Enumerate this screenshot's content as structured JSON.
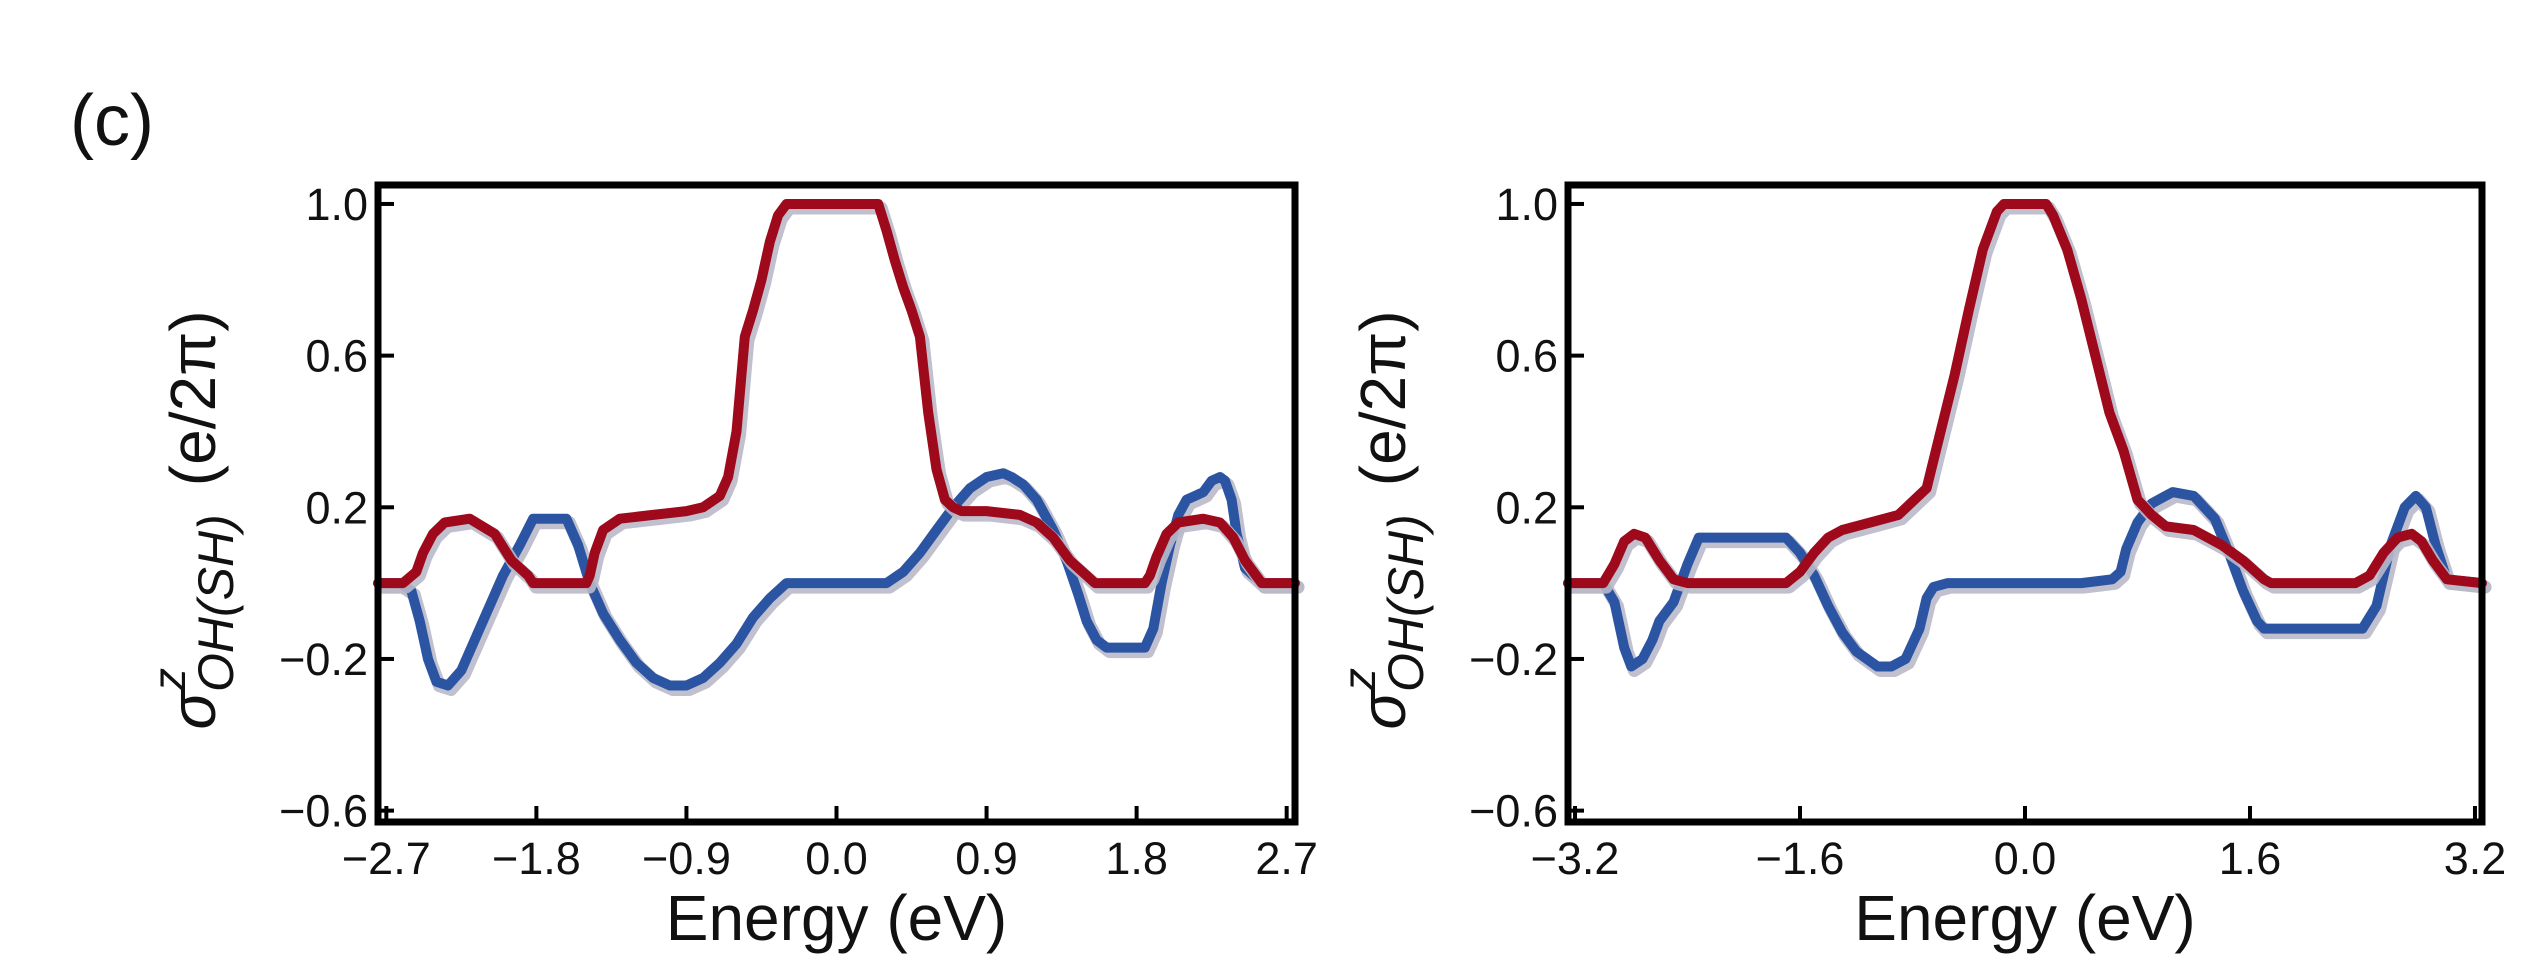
{
  "figure": {
    "panel_label": "(c)"
  },
  "colors": {
    "blue": "#2b55a3",
    "red": "#9e0a1c",
    "shadow": "#b9b9c9",
    "axis": "#000000"
  },
  "chart_data": [
    {
      "type": "line",
      "title": "",
      "xlabel": "Energy (eV)",
      "ylabel": {
        "sigma": "σ",
        "superscript": "z",
        "subscript": "OH(SH)",
        "units": "(e/2π)"
      },
      "xlim": [
        -2.75,
        2.75
      ],
      "ylim": [
        -0.63,
        1.05
      ],
      "xticks": [
        -2.7,
        -1.8,
        -0.9,
        0.0,
        0.9,
        1.8,
        2.7
      ],
      "xtick_labels": [
        "−2.7",
        "−1.8",
        "−0.9",
        "0.0",
        "0.9",
        "1.8",
        "2.7"
      ],
      "yticks": [
        1.0,
        0.6,
        0.2,
        -0.2,
        -0.6
      ],
      "ytick_labels": [
        "1.0",
        "0.6",
        "0.2",
        "−0.2",
        "−0.6"
      ],
      "series": [
        {
          "name": "blue",
          "color": "#2b55a3",
          "x": [
            -2.75,
            -2.62,
            -2.55,
            -2.5,
            -2.45,
            -2.4,
            -2.33,
            -2.25,
            -2.15,
            -2.0,
            -1.9,
            -1.82,
            -1.78,
            -1.62,
            -1.55,
            -1.48,
            -1.4,
            -1.3,
            -1.2,
            -1.1,
            -1.0,
            -0.9,
            -0.8,
            -0.7,
            -0.6,
            -0.5,
            -0.4,
            -0.3,
            -0.25,
            0.0,
            0.3,
            0.4,
            0.5,
            0.6,
            0.7,
            0.8,
            0.9,
            1.0,
            1.05,
            1.12,
            1.2,
            1.3,
            1.38,
            1.45,
            1.5,
            1.56,
            1.62,
            1.65,
            1.85,
            1.9,
            1.95,
            2.0,
            2.05,
            2.1,
            2.15,
            2.2,
            2.25,
            2.3,
            2.33,
            2.37,
            2.4,
            2.45,
            2.55,
            2.75
          ],
          "y": [
            0.0,
            0.0,
            -0.02,
            -0.1,
            -0.2,
            -0.26,
            -0.27,
            -0.23,
            -0.13,
            0.02,
            0.1,
            0.17,
            0.17,
            0.17,
            0.1,
            0.0,
            -0.08,
            -0.15,
            -0.21,
            -0.25,
            -0.27,
            -0.27,
            -0.25,
            -0.21,
            -0.16,
            -0.09,
            -0.04,
            0.0,
            0.0,
            0.0,
            0.0,
            0.03,
            0.08,
            0.14,
            0.2,
            0.25,
            0.28,
            0.29,
            0.28,
            0.26,
            0.22,
            0.14,
            0.06,
            -0.03,
            -0.1,
            -0.15,
            -0.17,
            -0.17,
            -0.17,
            -0.12,
            0.0,
            0.1,
            0.18,
            0.22,
            0.23,
            0.24,
            0.27,
            0.28,
            0.27,
            0.22,
            0.13,
            0.04,
            0.0,
            0.0
          ]
        },
        {
          "name": "red",
          "color": "#9e0a1c",
          "x": [
            -2.75,
            -2.6,
            -2.52,
            -2.48,
            -2.42,
            -2.35,
            -2.2,
            -2.05,
            -1.95,
            -1.85,
            -1.82,
            -1.8,
            -1.5,
            -1.48,
            -1.45,
            -1.4,
            -1.3,
            -1.1,
            -0.9,
            -0.8,
            -0.7,
            -0.65,
            -0.6,
            -0.55,
            -0.5,
            -0.45,
            -0.4,
            -0.35,
            -0.3,
            -0.25,
            -0.2,
            0.2,
            0.25,
            0.3,
            0.35,
            0.4,
            0.45,
            0.5,
            0.55,
            0.6,
            0.65,
            0.7,
            0.75,
            0.8,
            0.85,
            0.9,
            1.1,
            1.2,
            1.3,
            1.4,
            1.5,
            1.55,
            1.6,
            1.85,
            1.88,
            1.92,
            1.98,
            2.05,
            2.2,
            2.3,
            2.38,
            2.45,
            2.55,
            2.75
          ],
          "y": [
            0.0,
            0.0,
            0.03,
            0.08,
            0.13,
            0.16,
            0.17,
            0.13,
            0.06,
            0.02,
            0.0,
            0.0,
            0.0,
            0.02,
            0.08,
            0.14,
            0.17,
            0.18,
            0.19,
            0.2,
            0.23,
            0.28,
            0.4,
            0.65,
            0.72,
            0.8,
            0.9,
            0.97,
            1.0,
            1.0,
            1.0,
            1.0,
            1.0,
            0.93,
            0.85,
            0.78,
            0.72,
            0.65,
            0.45,
            0.3,
            0.22,
            0.2,
            0.19,
            0.19,
            0.19,
            0.19,
            0.18,
            0.16,
            0.12,
            0.06,
            0.02,
            0.0,
            0.0,
            0.0,
            0.02,
            0.07,
            0.13,
            0.16,
            0.17,
            0.16,
            0.12,
            0.06,
            0.0,
            0.0
          ]
        }
      ]
    },
    {
      "type": "line",
      "title": "",
      "xlabel": "Energy (eV)",
      "ylabel": {
        "sigma": "σ",
        "superscript": "z",
        "subscript": "OH(SH)",
        "units": "(e/2π)"
      },
      "xlim": [
        -3.25,
        3.25
      ],
      "ylim": [
        -0.63,
        1.05
      ],
      "xticks": [
        -3.2,
        -1.6,
        0.0,
        1.6,
        3.2
      ],
      "xtick_labels": [
        "−3.2",
        "−1.6",
        "0.0",
        "1.6",
        "3.2"
      ],
      "yticks": [
        1.0,
        0.6,
        0.2,
        -0.2,
        -0.6
      ],
      "ytick_labels": [
        "1.0",
        "0.6",
        "0.2",
        "−0.2",
        "−0.6"
      ],
      "series": [
        {
          "name": "blue",
          "color": "#2b55a3",
          "x": [
            -3.25,
            -3.0,
            -2.92,
            -2.85,
            -2.8,
            -2.72,
            -2.65,
            -2.6,
            -2.5,
            -2.4,
            -2.32,
            -1.7,
            -1.6,
            -1.5,
            -1.4,
            -1.3,
            -1.2,
            -1.05,
            -0.95,
            -0.85,
            -0.75,
            -0.7,
            -0.65,
            -0.55,
            -0.4,
            0.0,
            0.4,
            0.62,
            0.68,
            0.72,
            0.8,
            0.9,
            1.05,
            1.2,
            1.35,
            1.45,
            1.55,
            1.65,
            1.7,
            2.3,
            2.4,
            2.5,
            2.6,
            2.7,
            2.78,
            2.85,
            2.92,
            3.0,
            3.25
          ],
          "y": [
            0.0,
            0.0,
            -0.05,
            -0.17,
            -0.22,
            -0.2,
            -0.15,
            -0.1,
            -0.05,
            0.05,
            0.12,
            0.12,
            0.08,
            0.02,
            -0.06,
            -0.13,
            -0.18,
            -0.22,
            -0.22,
            -0.2,
            -0.12,
            -0.04,
            -0.01,
            0.0,
            0.0,
            0.0,
            0.0,
            0.01,
            0.03,
            0.09,
            0.16,
            0.21,
            0.24,
            0.23,
            0.17,
            0.08,
            -0.02,
            -0.1,
            -0.12,
            -0.12,
            -0.12,
            -0.06,
            0.1,
            0.2,
            0.23,
            0.2,
            0.1,
            0.01,
            0.0
          ]
        },
        {
          "name": "red",
          "color": "#9e0a1c",
          "x": [
            -3.25,
            -3.0,
            -2.92,
            -2.85,
            -2.78,
            -2.7,
            -2.6,
            -2.5,
            -2.4,
            -2.3,
            -2.2,
            -1.7,
            -1.6,
            -1.5,
            -1.4,
            -1.3,
            -1.1,
            -0.9,
            -0.7,
            -0.6,
            -0.5,
            -0.4,
            -0.3,
            -0.2,
            -0.15,
            0.15,
            0.2,
            0.3,
            0.4,
            0.5,
            0.6,
            0.7,
            0.8,
            0.9,
            1.0,
            1.2,
            1.4,
            1.55,
            1.7,
            1.75,
            2.35,
            2.45,
            2.55,
            2.65,
            2.75,
            2.82,
            2.9,
            3.0,
            3.25
          ],
          "y": [
            0.0,
            0.0,
            0.05,
            0.11,
            0.13,
            0.12,
            0.06,
            0.01,
            0.0,
            0.0,
            0.0,
            0.0,
            0.03,
            0.08,
            0.12,
            0.14,
            0.16,
            0.18,
            0.25,
            0.4,
            0.55,
            0.72,
            0.88,
            0.98,
            1.0,
            1.0,
            0.97,
            0.88,
            0.75,
            0.6,
            0.45,
            0.35,
            0.22,
            0.18,
            0.15,
            0.14,
            0.1,
            0.06,
            0.01,
            0.0,
            0.0,
            0.02,
            0.08,
            0.12,
            0.13,
            0.11,
            0.06,
            0.01,
            0.0
          ]
        }
      ]
    }
  ]
}
